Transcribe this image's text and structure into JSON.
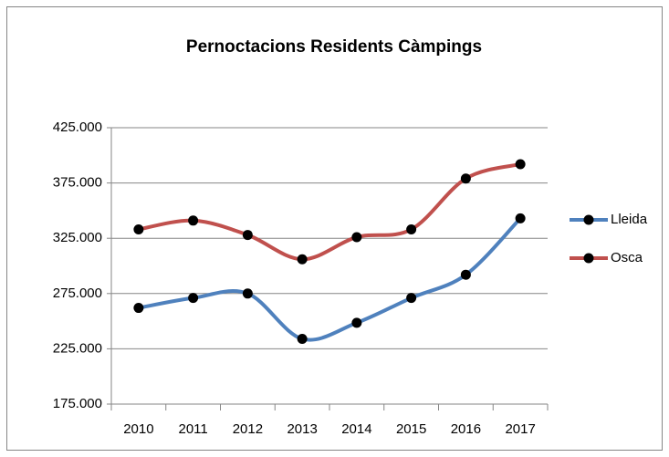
{
  "chart_data": {
    "type": "line",
    "title": "Pernoctacions Residents  Càmpings",
    "categories": [
      "2010",
      "2011",
      "2012",
      "2013",
      "2014",
      "2015",
      "2016",
      "2017"
    ],
    "series": [
      {
        "name": "Lleida",
        "color": "#4f81bd",
        "values": [
          262000,
          271000,
          275000,
          234000,
          248500,
          271000,
          292000,
          343000
        ]
      },
      {
        "name": "Osca",
        "color": "#c0504d",
        "values": [
          333000,
          341000,
          328000,
          306000,
          326000,
          333000,
          379000,
          392000
        ]
      }
    ],
    "ylim": [
      175000,
      425000
    ],
    "yticks": [
      {
        "value": 175000,
        "label": "175.000"
      },
      {
        "value": 225000,
        "label": "225.000"
      },
      {
        "value": 275000,
        "label": "275.000"
      },
      {
        "value": 325000,
        "label": "325.000"
      },
      {
        "value": 375000,
        "label": "375.000"
      },
      {
        "value": 425000,
        "label": "425.000"
      }
    ],
    "grid": true,
    "legend": "right"
  }
}
